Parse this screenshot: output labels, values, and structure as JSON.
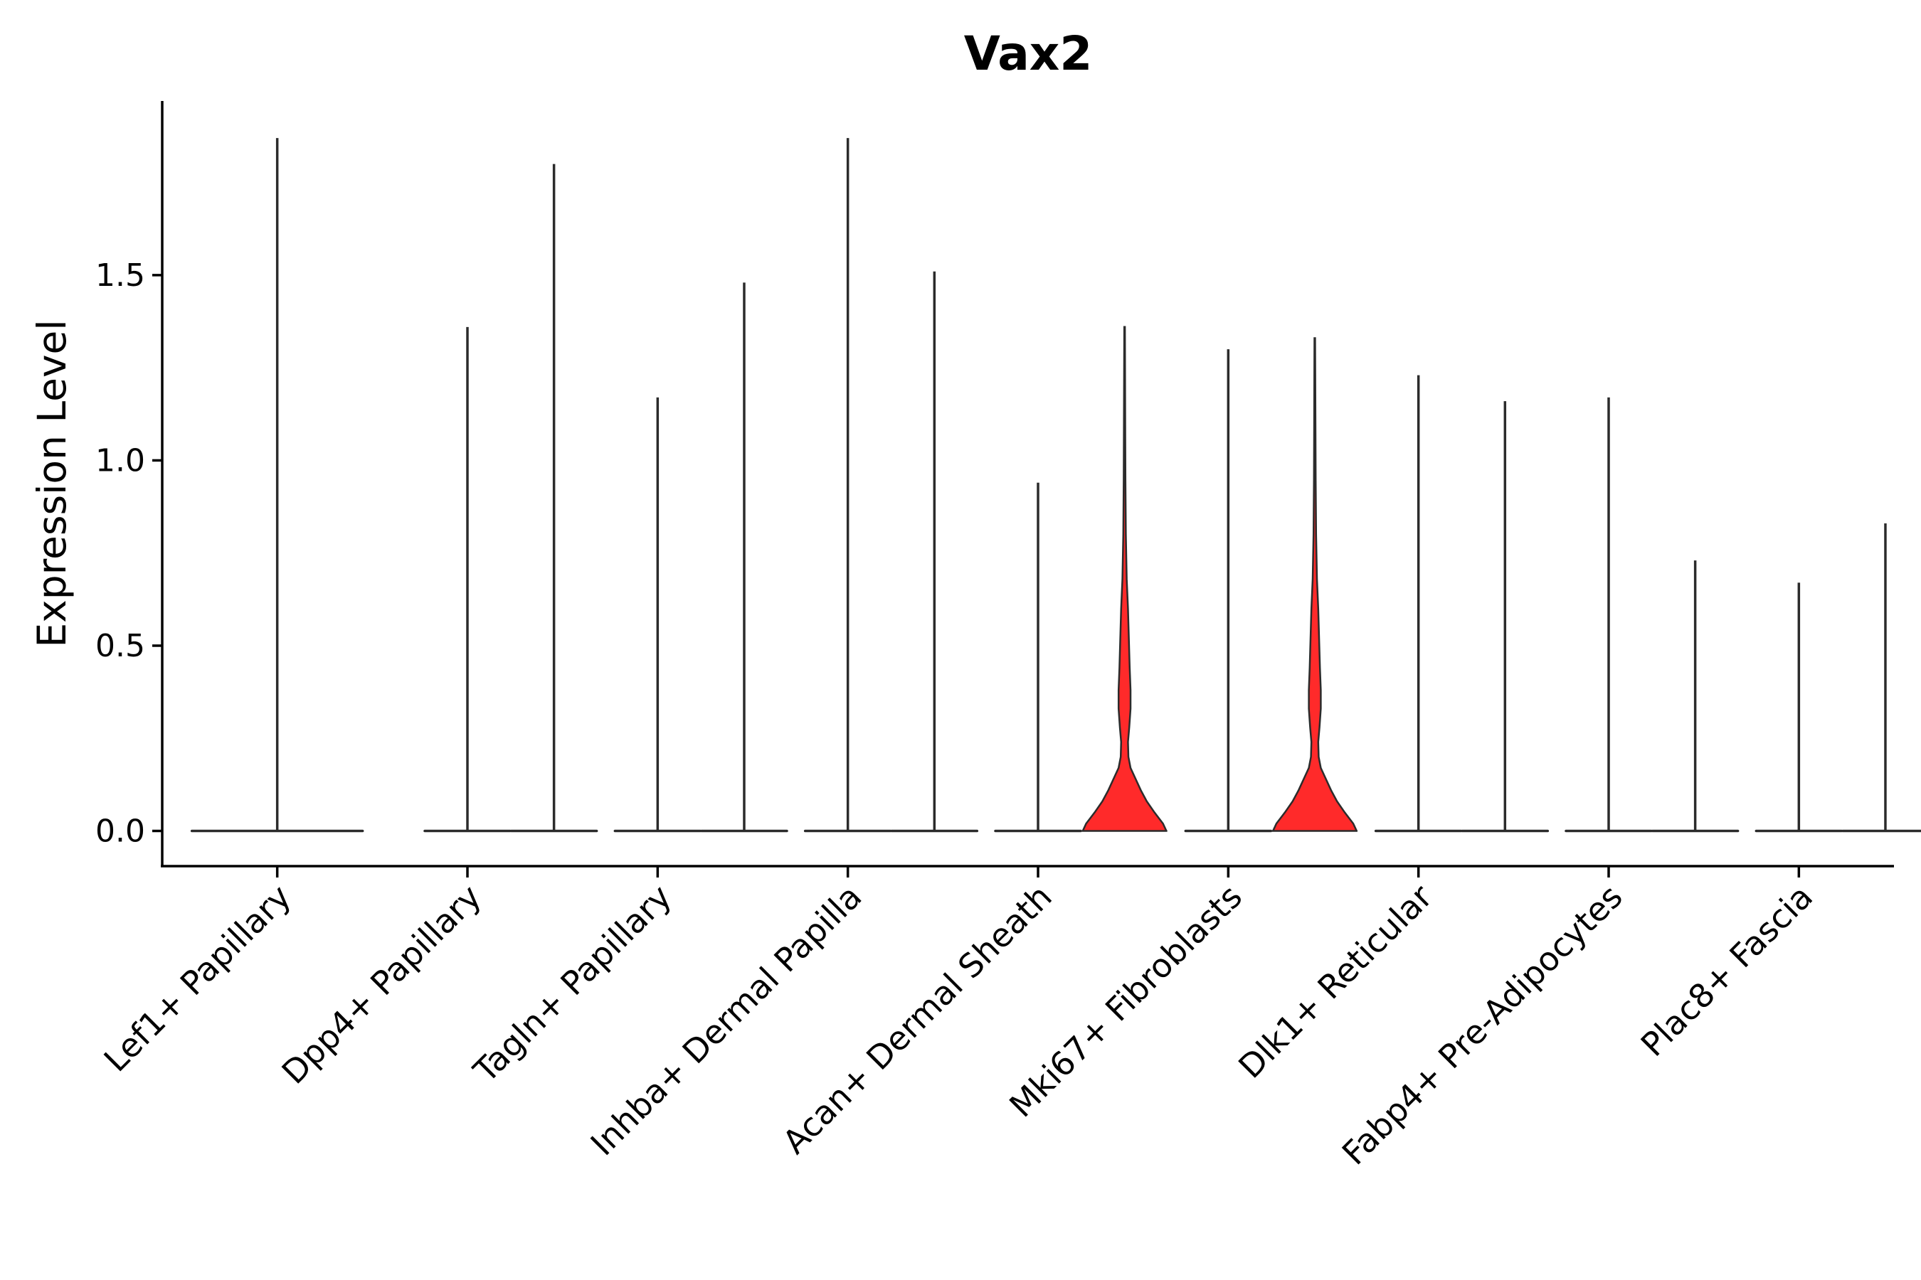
{
  "chart_data": {
    "type": "violin",
    "title": "Vax2",
    "xlabel": "",
    "ylabel": "Expression Level",
    "ylim": [
      -0.095,
      1.97
    ],
    "yticks": [
      0.0,
      0.5,
      1.0,
      1.5
    ],
    "ytick_labels": [
      "0.0",
      "0.5",
      "1.0",
      "1.5"
    ],
    "grid": false,
    "legend": "none",
    "highlight_color": "#ff2a2a",
    "line_color": "#2b2b2b",
    "groups": [
      {
        "name": "Lef1+ Papillary",
        "violins": [
          {
            "max": 1.87,
            "fill": null
          }
        ]
      },
      {
        "name": "Dpp4+ Papillary",
        "violins": [
          {
            "max": 1.36,
            "fill": null
          },
          {
            "max": 1.8,
            "fill": null
          }
        ]
      },
      {
        "name": "Tagln+ Papillary",
        "violins": [
          {
            "max": 1.17,
            "fill": null
          },
          {
            "max": 1.48,
            "fill": null
          }
        ]
      },
      {
        "name": "Inhba+ Dermal Papilla",
        "violins": [
          {
            "max": 1.87,
            "fill": null
          },
          {
            "max": 1.51,
            "fill": null
          }
        ]
      },
      {
        "name": "Acan+ Dermal Sheath",
        "violins": [
          {
            "max": 0.94,
            "fill": null
          },
          {
            "max": 1.36,
            "fill": "#ff2a2a"
          }
        ]
      },
      {
        "name": "Mki67+ Fibroblasts",
        "violins": [
          {
            "max": 1.3,
            "fill": null
          },
          {
            "max": 1.33,
            "fill": "#ff2a2a"
          }
        ]
      },
      {
        "name": "Dlk1+ Reticular",
        "violins": [
          {
            "max": 1.23,
            "fill": null
          },
          {
            "max": 1.16,
            "fill": null
          }
        ]
      },
      {
        "name": "Fabp4+ Pre-Adipocytes",
        "violins": [
          {
            "max": 1.17,
            "fill": null
          },
          {
            "max": 0.73,
            "fill": null
          }
        ]
      },
      {
        "name": "Plac8+ Fascia",
        "violins": [
          {
            "max": 0.67,
            "fill": null
          },
          {
            "max": 0.83,
            "fill": null
          }
        ]
      }
    ]
  }
}
